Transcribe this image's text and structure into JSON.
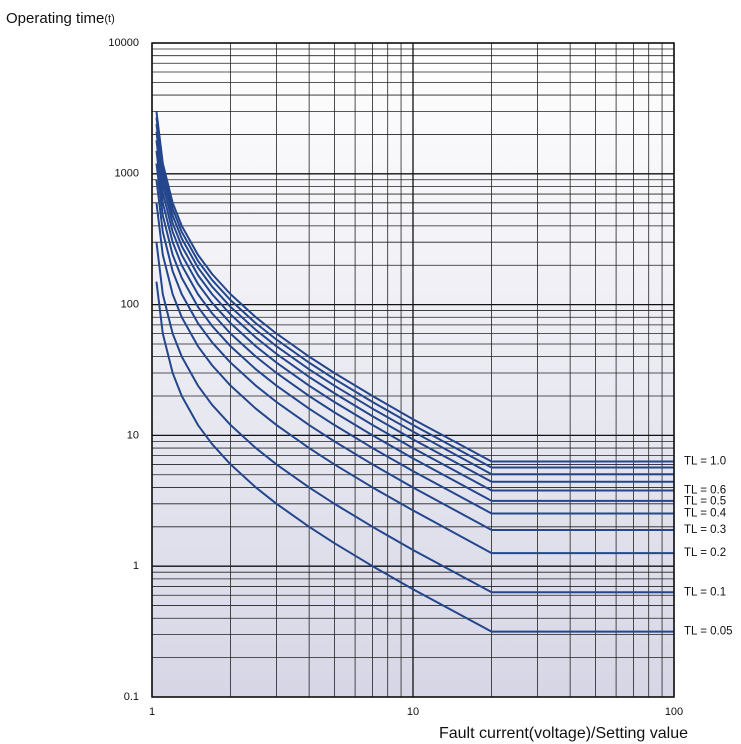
{
  "chart_data": {
    "type": "line",
    "y_label": "Operating time",
    "y_unit": "(t)",
    "x_label": "Fault current(voltage)/Setting value",
    "xscale": "log",
    "yscale": "log",
    "grid": true,
    "xlim": [
      1,
      100
    ],
    "ylim": [
      0.1,
      10000
    ],
    "xticks": [
      1,
      10,
      100
    ],
    "yticks": [
      0.1,
      1,
      10,
      100,
      1000,
      10000
    ],
    "x": [
      1.04,
      1.1,
      1.2,
      1.3,
      1.5,
      1.7,
      2,
      2.5,
      3,
      4,
      5,
      7,
      10,
      20,
      100
    ],
    "series": [
      {
        "name": "TL = 0.05",
        "color": "#24468c",
        "values": [
          150,
          60,
          30,
          20,
          12,
          8.57,
          6,
          4,
          3,
          2,
          1.5,
          1,
          0.667,
          0.316,
          0.316
        ]
      },
      {
        "name": "TL = 0.1",
        "color": "#24468c",
        "values": [
          300,
          120,
          60,
          40,
          24,
          17.1,
          12,
          8,
          6,
          4,
          3,
          2,
          1.33,
          0.632,
          0.632
        ]
      },
      {
        "name": "TL = 0.2",
        "color": "#24468c",
        "values": [
          600,
          240,
          120,
          80,
          48,
          34.3,
          24,
          16,
          12,
          8,
          6,
          4,
          2.67,
          1.26,
          1.26
        ]
      },
      {
        "name": "TL = 0.3",
        "color": "#24468c",
        "values": [
          900,
          360,
          180,
          120,
          72,
          51.4,
          36,
          24,
          18,
          12,
          9,
          6,
          4,
          1.89,
          1.89
        ]
      },
      {
        "name": "TL = 0.4",
        "color": "#24468c",
        "values": [
          1200,
          480,
          240,
          160,
          96,
          68.6,
          48,
          32,
          24,
          16,
          12,
          8,
          5.33,
          2.53,
          2.53
        ]
      },
      {
        "name": "TL = 0.5",
        "color": "#24468c",
        "values": [
          1500,
          600,
          300,
          200,
          120,
          85.7,
          60,
          40,
          30,
          20,
          15,
          10,
          6.67,
          3.16,
          3.16
        ]
      },
      {
        "name": "TL = 0.6",
        "color": "#24468c",
        "values": [
          1800,
          720,
          360,
          240,
          144,
          103,
          72,
          48,
          36,
          24,
          18,
          12,
          8,
          3.79,
          3.79
        ]
      },
      {
        "name": null,
        "color": "#24468c",
        "values": [
          2100,
          840,
          420,
          280,
          168,
          120,
          84,
          56,
          42,
          28,
          21,
          14,
          9.33,
          4.42,
          4.42
        ]
      },
      {
        "name": null,
        "color": "#24468c",
        "values": [
          2400,
          960,
          480,
          320,
          192,
          137,
          96,
          64,
          48,
          32,
          24,
          16,
          10.7,
          5.05,
          5.05
        ]
      },
      {
        "name": null,
        "color": "#24468c",
        "values": [
          2700,
          1080,
          540,
          360,
          216,
          154,
          108,
          72,
          54,
          36,
          27,
          18,
          12,
          5.68,
          5.68
        ]
      },
      {
        "name": "TL = 1.0",
        "color": "#24468c",
        "values": [
          3000,
          1200,
          600,
          400,
          240,
          171,
          120,
          80,
          60,
          40,
          30,
          20,
          13.3,
          6.32,
          6.32
        ]
      }
    ]
  }
}
